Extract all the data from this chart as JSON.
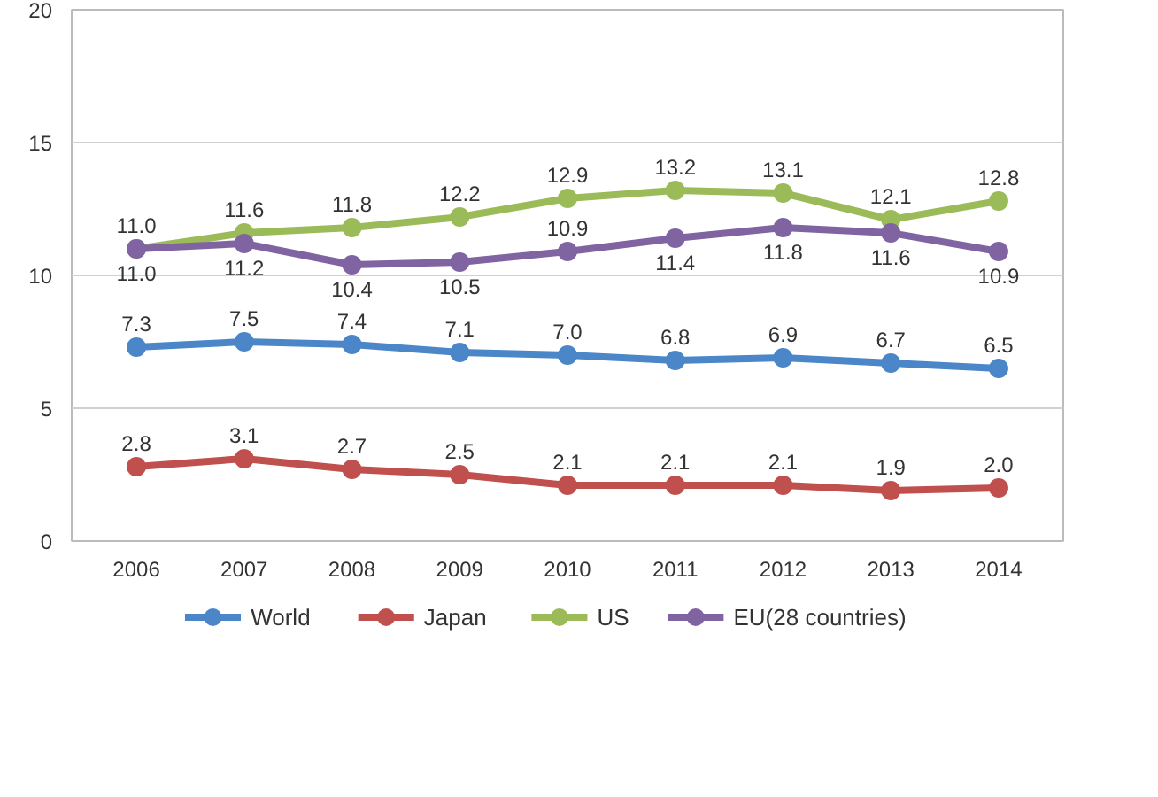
{
  "chart_data": {
    "type": "line",
    "categories": [
      "2006",
      "2007",
      "2008",
      "2009",
      "2010",
      "2011",
      "2012",
      "2013",
      "2014"
    ],
    "series": [
      {
        "name": "World",
        "color": "#4a86c8",
        "values": [
          7.3,
          7.5,
          7.4,
          7.1,
          7.0,
          6.8,
          6.9,
          6.7,
          6.5
        ],
        "value_labels": [
          "7.3",
          "7.5",
          "7.4",
          "7.1",
          "7.0",
          "6.8",
          "6.9",
          "6.7",
          "6.5"
        ]
      },
      {
        "name": "Japan",
        "color": "#c0504d",
        "values": [
          2.8,
          3.1,
          2.7,
          2.5,
          2.1,
          2.1,
          2.1,
          1.9,
          2.0
        ],
        "value_labels": [
          "2.8",
          "3.1",
          "2.7",
          "2.5",
          "2.1",
          "2.1",
          "2.1",
          "1.9",
          "2.0"
        ]
      },
      {
        "name": "US",
        "color": "#9bbb59",
        "values": [
          11.0,
          11.6,
          11.8,
          12.2,
          12.9,
          13.2,
          13.1,
          12.1,
          12.8
        ],
        "value_labels": [
          "11.0",
          "11.6",
          "11.8",
          "12.2",
          "12.9",
          "13.2",
          "13.1",
          "12.1",
          "12.8"
        ]
      },
      {
        "name": "EU(28 countries)",
        "color": "#8064a2",
        "values": [
          11.0,
          11.2,
          10.4,
          10.5,
          10.9,
          11.4,
          11.8,
          11.6,
          10.9
        ],
        "value_labels": [
          "11.0",
          "11.2",
          "10.4",
          "10.5",
          "10.9",
          "11.4",
          "11.8",
          "11.6",
          "10.9"
        ]
      }
    ],
    "ylim": [
      0,
      20
    ],
    "yticks": [
      0,
      5,
      10,
      15,
      20
    ],
    "grid": "y",
    "legend": "bottom",
    "marker": "circle",
    "line_style": "solid"
  }
}
